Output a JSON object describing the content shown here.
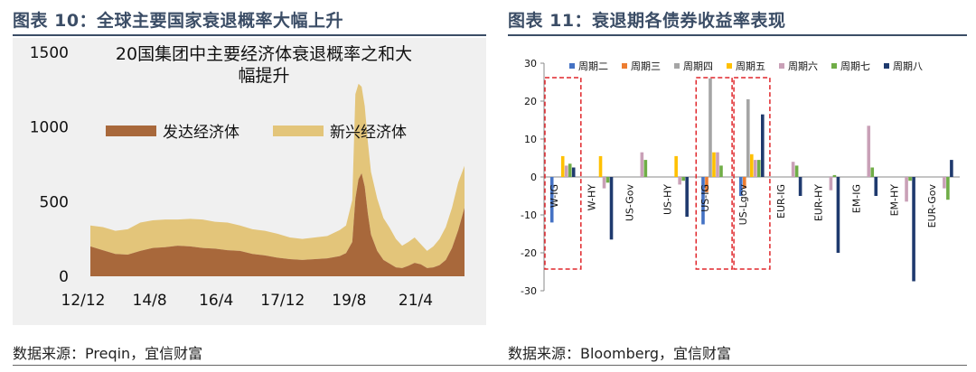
{
  "left_panel": {
    "title": "图表 10：全球主要国家衰退概率大幅上升",
    "source": "数据来源：Preqin，宜信财富"
  },
  "right_panel": {
    "title": "图表 11：衰退期各债券收益率表现",
    "source": "数据来源：Bloomberg，宜信财富"
  },
  "colors": {
    "developed": "#a8683b",
    "emerging": "#e3c57a",
    "title_text": "#3b4d66",
    "dashed_box": "#e0262b"
  },
  "chart_data": [
    {
      "type": "area",
      "title": "20国集团中主要经济体衰退概率之和大幅提升",
      "title_lines": [
        "20国集团中主要经济体衰退概率之和大",
        "幅提升"
      ],
      "x_range": [
        "2012-12",
        "2022-12"
      ],
      "ylim": [
        0,
        1500
      ],
      "yticks": [
        0,
        500,
        1000,
        1500
      ],
      "xticks": [
        "12/12",
        "14/8",
        "16/4",
        "17/12",
        "19/8",
        "21/4"
      ],
      "legend": [
        "发达经济体",
        "新兴经济体"
      ],
      "stacked": true,
      "series": [
        {
          "name": "发达经济体",
          "x": [
            "2012-12",
            "2013-04",
            "2013-08",
            "2013-12",
            "2014-04",
            "2014-08",
            "2014-12",
            "2015-04",
            "2015-08",
            "2015-12",
            "2016-04",
            "2016-08",
            "2016-12",
            "2017-04",
            "2017-08",
            "2017-12",
            "2018-04",
            "2018-08",
            "2018-12",
            "2019-04",
            "2019-08",
            "2019-10",
            "2019-12",
            "2020-01",
            "2020-02",
            "2020-03",
            "2020-04",
            "2020-05",
            "2020-06",
            "2020-08",
            "2020-10",
            "2020-12",
            "2021-02",
            "2021-04",
            "2021-06",
            "2021-08",
            "2021-10",
            "2021-12",
            "2022-02",
            "2022-04",
            "2022-06",
            "2022-08",
            "2022-10",
            "2022-12"
          ],
          "values": [
            200,
            175,
            150,
            145,
            170,
            190,
            195,
            205,
            200,
            190,
            185,
            175,
            170,
            150,
            140,
            125,
            115,
            110,
            115,
            120,
            135,
            155,
            230,
            520,
            650,
            690,
            600,
            420,
            280,
            170,
            110,
            85,
            60,
            55,
            70,
            90,
            80,
            55,
            60,
            75,
            110,
            190,
            310,
            460
          ]
        },
        {
          "name": "新兴经济体",
          "x": [
            "2012-12",
            "2013-04",
            "2013-08",
            "2013-12",
            "2014-04",
            "2014-08",
            "2014-12",
            "2015-04",
            "2015-08",
            "2015-12",
            "2016-04",
            "2016-08",
            "2016-12",
            "2017-04",
            "2017-08",
            "2017-12",
            "2018-04",
            "2018-08",
            "2018-12",
            "2019-04",
            "2019-08",
            "2019-10",
            "2019-12",
            "2020-01",
            "2020-02",
            "2020-03",
            "2020-04",
            "2020-05",
            "2020-06",
            "2020-08",
            "2020-10",
            "2020-12",
            "2021-02",
            "2021-04",
            "2021-06",
            "2021-08",
            "2021-10",
            "2021-12",
            "2022-02",
            "2022-04",
            "2022-06",
            "2022-08",
            "2022-10",
            "2022-12"
          ],
          "values": [
            140,
            155,
            155,
            170,
            190,
            185,
            185,
            175,
            185,
            190,
            180,
            185,
            170,
            165,
            165,
            160,
            145,
            140,
            145,
            150,
            175,
            185,
            280,
            700,
            640,
            580,
            540,
            480,
            420,
            350,
            280,
            240,
            190,
            150,
            160,
            170,
            135,
            115,
            140,
            175,
            220,
            270,
            320,
            280
          ]
        }
      ]
    },
    {
      "type": "bar",
      "title": "",
      "ylim": [
        -30,
        30
      ],
      "yticks": [
        -30,
        -20,
        -10,
        0,
        10,
        20,
        30
      ],
      "categories": [
        "W-IG",
        "W-HY",
        "US-Gov",
        "US-HY",
        "US-IG",
        "US-Lgov",
        "EUR-IG",
        "EUR-HY",
        "EM-IG",
        "EM-HY",
        "EUR-Gov"
      ],
      "highlighted_categories": [
        "W-IG",
        "US-IG",
        "US-Lgov"
      ],
      "series": [
        {
          "name": "周期二",
          "color": "#4472c4",
          "values": [
            -12,
            0,
            0,
            0,
            -12.5,
            -5,
            0,
            0,
            0,
            0,
            0
          ]
        },
        {
          "name": "周期三",
          "color": "#ed7d31",
          "values": [
            0,
            0,
            0,
            0,
            -4,
            -3,
            0,
            0,
            0,
            0,
            0
          ]
        },
        {
          "name": "周期四",
          "color": "#a5a5a5",
          "values": [
            0,
            0,
            0,
            0,
            26,
            20.5,
            0,
            0,
            0,
            0,
            0
          ]
        },
        {
          "name": "周期五",
          "color": "#ffc000",
          "values": [
            5.5,
            5.5,
            0,
            5.5,
            6.5,
            6,
            0,
            0,
            0,
            0,
            0
          ]
        },
        {
          "name": "周期六",
          "color": "#c9a0b7",
          "values": [
            3,
            -3,
            6.5,
            -2,
            6.5,
            4.5,
            4,
            -3.5,
            13.5,
            -6.5,
            -3
          ]
        },
        {
          "name": "周期七",
          "color": "#70ad47",
          "values": [
            3.5,
            -1.5,
            4.5,
            -1,
            3,
            4.5,
            3,
            0.5,
            2.5,
            -1,
            -6
          ]
        },
        {
          "name": "周期八",
          "color": "#1f3a6e",
          "values": [
            2.5,
            -16.5,
            0,
            -10.5,
            0,
            16.5,
            -5,
            -20,
            -5,
            -27.5,
            4.5
          ]
        }
      ]
    }
  ]
}
